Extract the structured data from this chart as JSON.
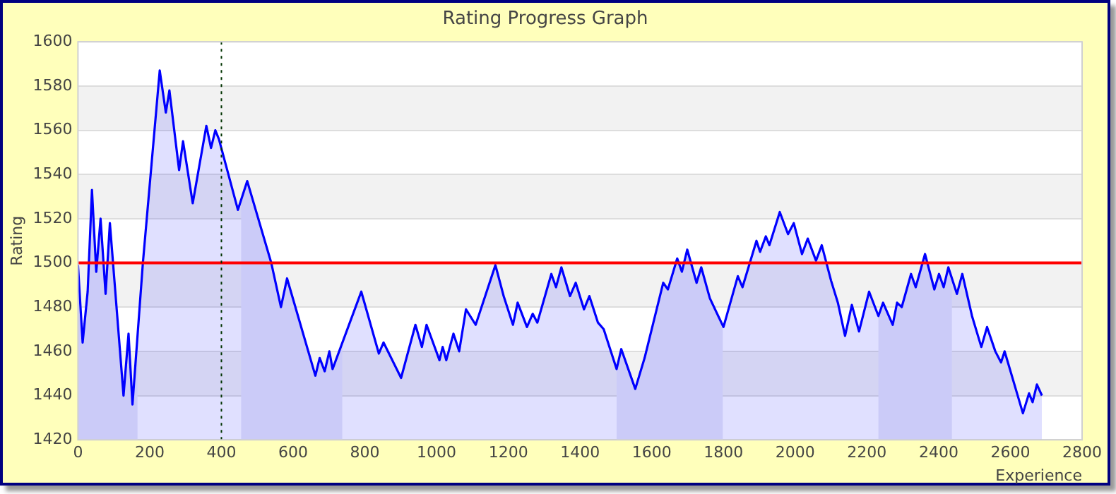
{
  "chart_data": {
    "type": "area",
    "title": "Rating Progress Graph",
    "xlabel": "Experience",
    "ylabel": "Rating",
    "xlim": [
      0,
      2800
    ],
    "xticks": [
      0,
      200,
      400,
      600,
      800,
      1000,
      1200,
      1400,
      1600,
      1800,
      2000,
      2200,
      2400,
      2600,
      2800
    ],
    "ylim": [
      1420,
      1600
    ],
    "yticks": [
      1420,
      1440,
      1460,
      1480,
      1500,
      1520,
      1540,
      1560,
      1580,
      1600
    ],
    "grid": "y",
    "legend": false,
    "marker": "none",
    "line_style": "solid",
    "series": [
      {
        "color": "#0000ff",
        "x": [
          0,
          13,
          27,
          39,
          51,
          63,
          77,
          89,
          127,
          141,
          152,
          181,
          228,
          245,
          255,
          282,
          293,
          320,
          358,
          371,
          383,
          393,
          446,
          472,
          539,
          566,
          583,
          662,
          674,
          688,
          701,
          710,
          790,
          839,
          852,
          901,
          941,
          959,
          972,
          1008,
          1017,
          1027,
          1047,
          1063,
          1082,
          1109,
          1164,
          1187,
          1213,
          1226,
          1252,
          1268,
          1281,
          1320,
          1333,
          1348,
          1372,
          1388,
          1411,
          1426,
          1450,
          1466,
          1502,
          1515,
          1554,
          1580,
          1632,
          1645,
          1671,
          1684,
          1699,
          1725,
          1738,
          1762,
          1800,
          1840,
          1853,
          1892,
          1902,
          1918,
          1928,
          1957,
          1980,
          1996,
          2019,
          2035,
          2058,
          2074,
          2100,
          2119,
          2139,
          2158,
          2178,
          2206,
          2232,
          2245,
          2272,
          2284,
          2297,
          2323,
          2336,
          2362,
          2388,
          2401,
          2414,
          2427,
          2451,
          2466,
          2493,
          2519,
          2535,
          2558,
          2574,
          2584,
          2635,
          2652,
          2662,
          2674,
          2688
        ],
        "values": [
          1499,
          1464,
          1487,
          1533,
          1496,
          1520,
          1486,
          1518,
          1440,
          1468,
          1436,
          1500,
          1587,
          1568,
          1578,
          1542,
          1555,
          1527,
          1562,
          1552,
          1560,
          1556,
          1524,
          1537,
          1500,
          1480,
          1493,
          1449,
          1457,
          1451,
          1460,
          1452,
          1487,
          1459,
          1464,
          1448,
          1472,
          1462,
          1472,
          1456,
          1462,
          1456,
          1468,
          1460,
          1479,
          1472,
          1499,
          1485,
          1472,
          1482,
          1471,
          1477,
          1473,
          1495,
          1489,
          1498,
          1485,
          1491,
          1479,
          1485,
          1473,
          1470,
          1452,
          1461,
          1443,
          1457,
          1491,
          1488,
          1502,
          1496,
          1506,
          1491,
          1498,
          1484,
          1471,
          1494,
          1489,
          1510,
          1505,
          1512,
          1508,
          1523,
          1513,
          1518,
          1504,
          1511,
          1501,
          1508,
          1492,
          1482,
          1467,
          1481,
          1469,
          1487,
          1476,
          1482,
          1472,
          1482,
          1480,
          1495,
          1489,
          1504,
          1488,
          1495,
          1489,
          1498,
          1486,
          1495,
          1476,
          1462,
          1471,
          1460,
          1455,
          1460,
          1432,
          1441,
          1437,
          1445,
          1440
        ]
      }
    ],
    "bands": [
      {
        "axis": "x",
        "from": 0,
        "to": 166,
        "color": "#e8e8f8"
      },
      {
        "axis": "x",
        "from": 455,
        "to": 737,
        "color": "#e8e8f8"
      },
      {
        "axis": "x",
        "from": 1502,
        "to": 1798,
        "color": "#e8e8f8"
      },
      {
        "axis": "x",
        "from": 2232,
        "to": 2437,
        "color": "#e8e8f8"
      }
    ],
    "ref_lines": [
      {
        "axis": "y",
        "value": 1500,
        "color": "#ff0000",
        "line_style": "solid"
      },
      {
        "axis": "x",
        "value": 400,
        "color": "#003300",
        "line_style": "dotted"
      }
    ]
  }
}
